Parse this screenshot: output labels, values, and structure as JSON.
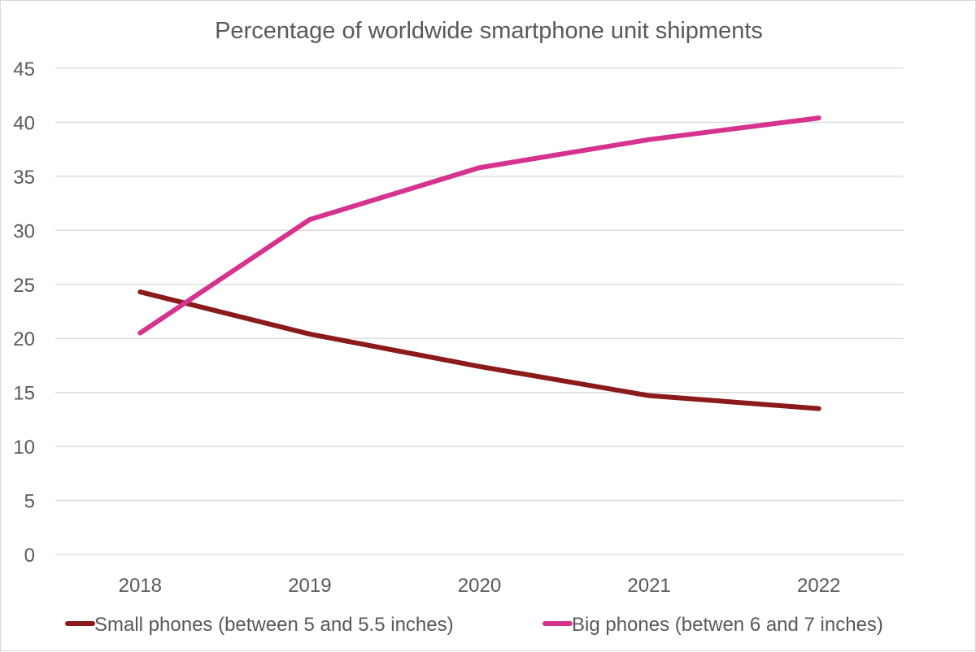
{
  "chart_data": {
    "type": "line",
    "title": "Percentage of worldwide smartphone unit shipments",
    "xlabel": "",
    "ylabel": "",
    "categories": [
      "2018",
      "2019",
      "2020",
      "2021",
      "2022"
    ],
    "ylim": [
      0,
      45
    ],
    "yticks": [
      0,
      5,
      10,
      15,
      20,
      25,
      30,
      35,
      40,
      45
    ],
    "ytick_labels": [
      "0",
      "5",
      "10",
      "15",
      "20",
      "25",
      "30",
      "35",
      "40",
      "45"
    ],
    "grid": true,
    "legend_position": "bottom",
    "series": [
      {
        "name": "Small phones (between 5 and 5.5 inches)",
        "color": "#8b1a1a",
        "values": [
          24.3,
          20.4,
          17.4,
          14.7,
          13.5
        ]
      },
      {
        "name": "Big phones (betwen 6 and 7 inches)",
        "color": "#d6338f",
        "values": [
          20.5,
          31.0,
          35.8,
          38.4,
          40.4
        ]
      }
    ]
  }
}
